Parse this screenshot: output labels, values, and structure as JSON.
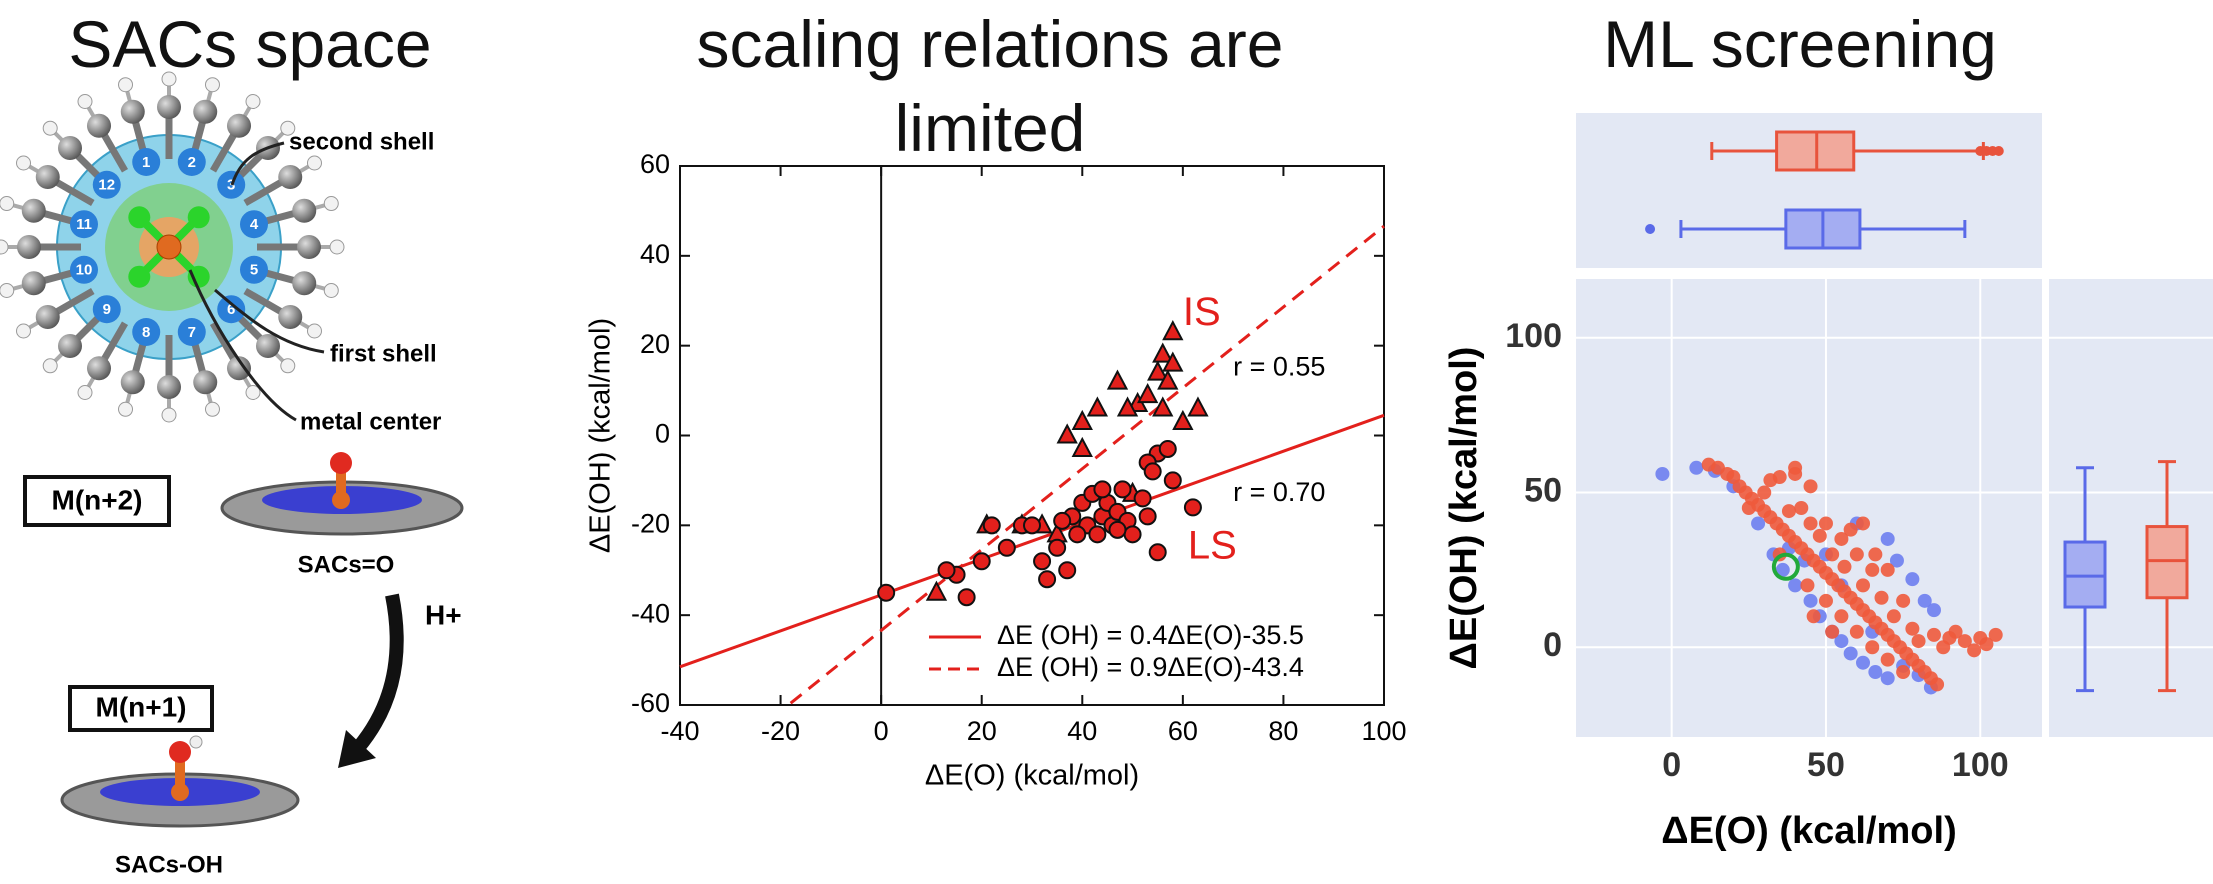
{
  "diagram": {
    "title": "SACs space",
    "shell_labels": [
      "second shell",
      "first shell",
      "metal center"
    ],
    "ring_labels": [
      "1",
      "2",
      "3",
      "4",
      "5",
      "6",
      "7",
      "8",
      "9",
      "10",
      "11",
      "12"
    ],
    "states": [
      {
        "box": "M(n+2)",
        "label": "SACs=O"
      },
      {
        "box": "M(n+1)",
        "label": "SACs-OH"
      }
    ],
    "reaction": "H+"
  },
  "chart_data": [
    {
      "type": "scatter",
      "title": "scaling relations are limited",
      "x_label": "ΔE(O) (kcal/mol)",
      "y_label": "ΔE(OH) (kcal/mol)",
      "xlim": [
        -40,
        100
      ],
      "ylim": [
        -60,
        60
      ],
      "xticks": [
        -40,
        -20,
        0,
        20,
        40,
        60,
        80,
        100
      ],
      "yticks": [
        -60,
        -40,
        -20,
        0,
        20,
        40,
        60
      ],
      "zero_line_x": 0,
      "legend": "lower right",
      "series": [
        {
          "name": "IS",
          "marker": "triangle",
          "color": "#e3201c",
          "x": [
            58,
            56,
            55,
            58,
            47,
            51,
            53,
            49,
            56,
            43,
            40,
            40,
            37,
            63,
            60,
            57,
            11,
            28,
            32,
            21,
            45,
            50,
            35
          ],
          "values": [
            23,
            18,
            14,
            16,
            12,
            7,
            9,
            6,
            6,
            6,
            3,
            -3,
            0,
            6,
            3,
            12,
            -35,
            -20,
            -20,
            -20,
            -17,
            -13,
            -22
          ]
        },
        {
          "name": "LS",
          "marker": "circle",
          "color": "#e3201c",
          "x": [
            1,
            15,
            17,
            13,
            20,
            22,
            25,
            28,
            30,
            32,
            33,
            35,
            37,
            38,
            40,
            41,
            42,
            43,
            44,
            45,
            46,
            47,
            48,
            49,
            50,
            52,
            53,
            55,
            55,
            57,
            58,
            62,
            53,
            54,
            44,
            47,
            39,
            36
          ],
          "values": [
            -35,
            -31,
            -36,
            -30,
            -28,
            -20,
            -25,
            -20,
            -20,
            -28,
            -32,
            -25,
            -30,
            -18,
            -15,
            -20,
            -13,
            -22,
            -18,
            -15,
            -20,
            -17,
            -12,
            -19,
            -22,
            -14,
            -18,
            -4,
            -26,
            -3,
            -10,
            -16,
            -6,
            -8,
            -12,
            -21,
            -22,
            -19
          ]
        }
      ],
      "fit_lines": [
        {
          "name": "ΔE (OH) = 0.4ΔE(O)-35.5",
          "dashed": false,
          "color": "#e3201c",
          "x": [
            -40,
            100
          ],
          "values": [
            -51.5,
            4.5
          ]
        },
        {
          "name": "ΔE (OH) = 0.9ΔE(O)-43.4",
          "dashed": true,
          "color": "#e3201c",
          "x": [
            -18,
            100
          ],
          "values": [
            -59.6,
            46.6
          ]
        }
      ],
      "annotations": [
        "r = 0.55",
        "r = 0.70"
      ]
    },
    {
      "type": "scatter",
      "title": "ML screening",
      "x_label": "ΔE(O) (kcal/mol)",
      "y_label": "ΔE(OH) (kcal/mol)",
      "xlim": [
        -31,
        120
      ],
      "ylim": [
        -29,
        119
      ],
      "xticks": [
        0,
        50,
        100
      ],
      "yticks": [
        0,
        50,
        100
      ],
      "grid": true,
      "background": "#e3e8f4",
      "series": [
        {
          "color": "#6d7ef0",
          "x": [
            -3,
            8,
            14,
            20,
            28,
            33,
            36,
            40,
            45,
            48,
            52,
            55,
            58,
            62,
            66,
            70,
            75,
            80,
            84,
            73,
            78,
            82,
            85,
            70,
            60,
            50,
            55,
            65,
            43,
            38
          ],
          "values": [
            56,
            58,
            57,
            52,
            40,
            30,
            25,
            20,
            15,
            10,
            5,
            2,
            -2,
            -5,
            -8,
            -10,
            -6,
            -9,
            -13,
            28,
            22,
            15,
            12,
            35,
            40,
            30,
            20,
            5,
            28,
            32
          ]
        },
        {
          "color": "#ee5a3c",
          "x": [
            12,
            15,
            18,
            20,
            22,
            24,
            26,
            28,
            30,
            32,
            34,
            36,
            38,
            40,
            42,
            44,
            46,
            48,
            50,
            52,
            54,
            56,
            58,
            60,
            62,
            64,
            66,
            68,
            70,
            72,
            74,
            76,
            78,
            80,
            82,
            84,
            86,
            25,
            30,
            35,
            40,
            45,
            42,
            50,
            55,
            60,
            65,
            58,
            48,
            52,
            56,
            62,
            68,
            45,
            38,
            35,
            44,
            50,
            55,
            60,
            65,
            70,
            75,
            72,
            78,
            80,
            85,
            90,
            95,
            100,
            105,
            102,
            88,
            92,
            98,
            70,
            75,
            66,
            62,
            40,
            32,
            46,
            52
          ],
          "values": [
            59,
            58,
            56,
            55,
            52,
            50,
            48,
            46,
            44,
            42,
            40,
            38,
            36,
            34,
            32,
            30,
            28,
            26,
            24,
            22,
            20,
            18,
            16,
            14,
            12,
            10,
            8,
            6,
            4,
            2,
            0,
            -2,
            -4,
            -6,
            -8,
            -10,
            -12,
            45,
            50,
            55,
            58,
            52,
            45,
            40,
            35,
            30,
            25,
            38,
            36,
            30,
            26,
            20,
            16,
            40,
            44,
            30,
            20,
            15,
            10,
            5,
            0,
            -4,
            -8,
            10,
            6,
            2,
            4,
            3,
            2,
            3,
            4,
            1,
            0,
            5,
            -1,
            25,
            15,
            30,
            40,
            56,
            54,
            10,
            5
          ]
        }
      ],
      "highlight": {
        "x": 37,
        "y": 26,
        "color": "#22a93a"
      },
      "x_boxes": [
        {
          "color": "#5a6ae8",
          "fill": "#a4adf2",
          "whisker_low": 3,
          "q1": 37,
          "median": 49,
          "q3": 61,
          "whisker_high": 95,
          "outliers": [
            -7
          ]
        },
        {
          "color": "#e8533c",
          "fill": "#f1a99c",
          "whisker_low": 13,
          "q1": 34,
          "median": 47,
          "q3": 59,
          "whisker_high": 101,
          "outliers": [
            100,
            102,
            104,
            106
          ]
        }
      ],
      "y_boxes": [
        {
          "color": "#5a6ae8",
          "fill": "#a4adf2",
          "whisker_low": -14,
          "q1": 13,
          "median": 23,
          "q3": 34,
          "whisker_high": 58,
          "outliers": []
        },
        {
          "color": "#e8533c",
          "fill": "#f1a99c",
          "whisker_low": -14,
          "q1": 16,
          "median": 28,
          "q3": 39,
          "whisker_high": 60,
          "outliers": []
        }
      ]
    }
  ]
}
